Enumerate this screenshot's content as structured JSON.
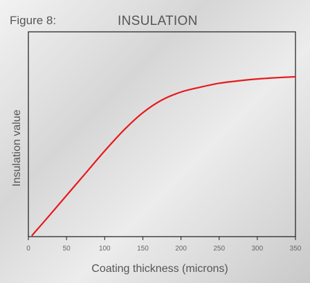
{
  "figure": {
    "label": "Figure 8:"
  },
  "chart_data": {
    "type": "line",
    "title": "INSULATION",
    "xlabel": "Coating thickness (microns)",
    "ylabel": "Insulation value",
    "xlim": [
      0,
      350
    ],
    "ylim": [
      0,
      100
    ],
    "xticks": [
      0,
      50,
      100,
      150,
      200,
      250,
      300,
      350
    ],
    "grid": false,
    "series_color": "#e8191c",
    "series": [
      {
        "x": [
          5,
          25,
          50,
          75,
          100,
          125,
          150,
          175,
          200,
          225,
          250,
          275,
          300,
          325,
          350
        ],
        "y": [
          0,
          11,
          25,
          39,
          53,
          66,
          77,
          85,
          90,
          93,
          95.5,
          97,
          98.2,
          99,
          99.6
        ]
      }
    ]
  }
}
